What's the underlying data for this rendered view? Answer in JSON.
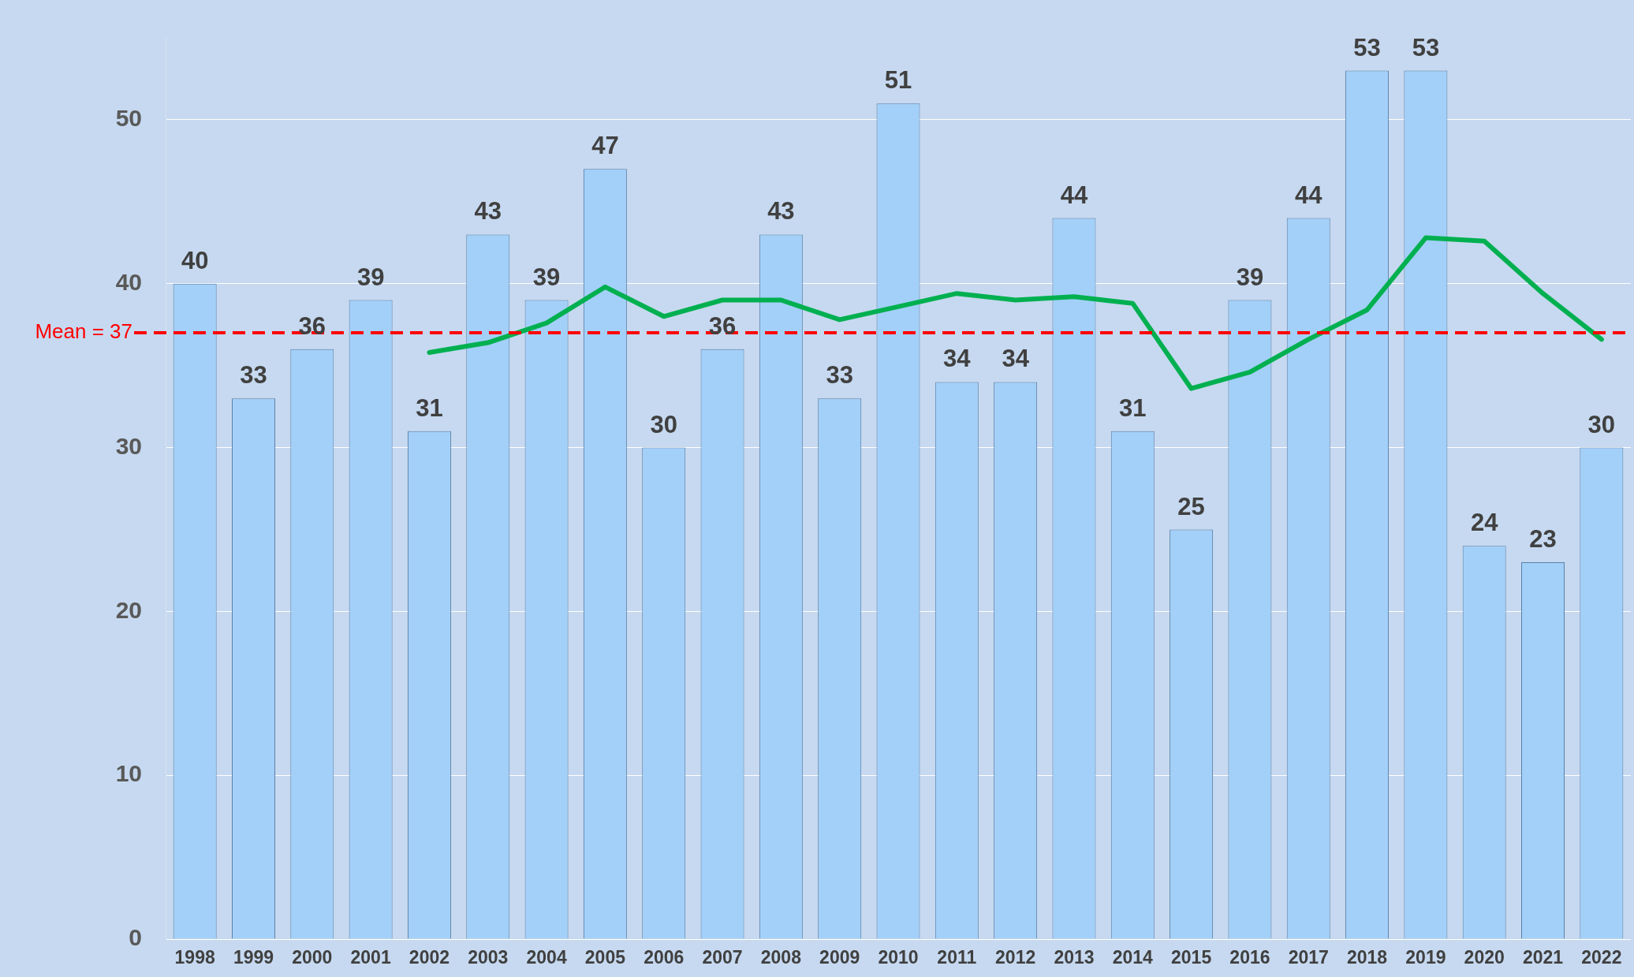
{
  "chart_data": {
    "type": "bar",
    "categories": [
      "1998",
      "1999",
      "2000",
      "2001",
      "2002",
      "2003",
      "2004",
      "2005",
      "2006",
      "2007",
      "2008",
      "2009",
      "2010",
      "2011",
      "2012",
      "2013",
      "2014",
      "2015",
      "2016",
      "2017",
      "2018",
      "2019",
      "2020",
      "2021",
      "2022"
    ],
    "series": [
      {
        "color": "#a3d0f8",
        "values": [
          40,
          33,
          36,
          39,
          31,
          43,
          39,
          47,
          30,
          36,
          43,
          33,
          51,
          34,
          34,
          44,
          31,
          25,
          39,
          44,
          53,
          53,
          24,
          23,
          30
        ],
        "value_labels": [
          "40",
          "33",
          "36",
          "39",
          "31",
          "43",
          "39",
          "47",
          "30",
          "36",
          "43",
          "33",
          "51",
          "34",
          "34",
          "44",
          "31",
          "25",
          "39",
          "44",
          "53",
          "53",
          "24",
          "23",
          "30"
        ]
      },
      {
        "type": "line",
        "color": "#00b050",
        "values": [
          null,
          null,
          null,
          null,
          35.8,
          36.4,
          37.6,
          39.8,
          38,
          39,
          39,
          37.8,
          38.6,
          39.4,
          39,
          39.2,
          38.8,
          33.6,
          34.6,
          36.6,
          38.4,
          42.8,
          42.6,
          39.4,
          36.6
        ]
      }
    ],
    "ylim": [
      0,
      55
    ],
    "yticks": [
      0,
      10,
      20,
      30,
      40,
      50
    ],
    "grid": "y",
    "marker": "none",
    "line_style": "solid",
    "ref_lines": [
      {
        "axis": "y",
        "value": 37,
        "label": "Mean = 37",
        "color": "#ff0000",
        "line_style": "dashed"
      }
    ]
  }
}
